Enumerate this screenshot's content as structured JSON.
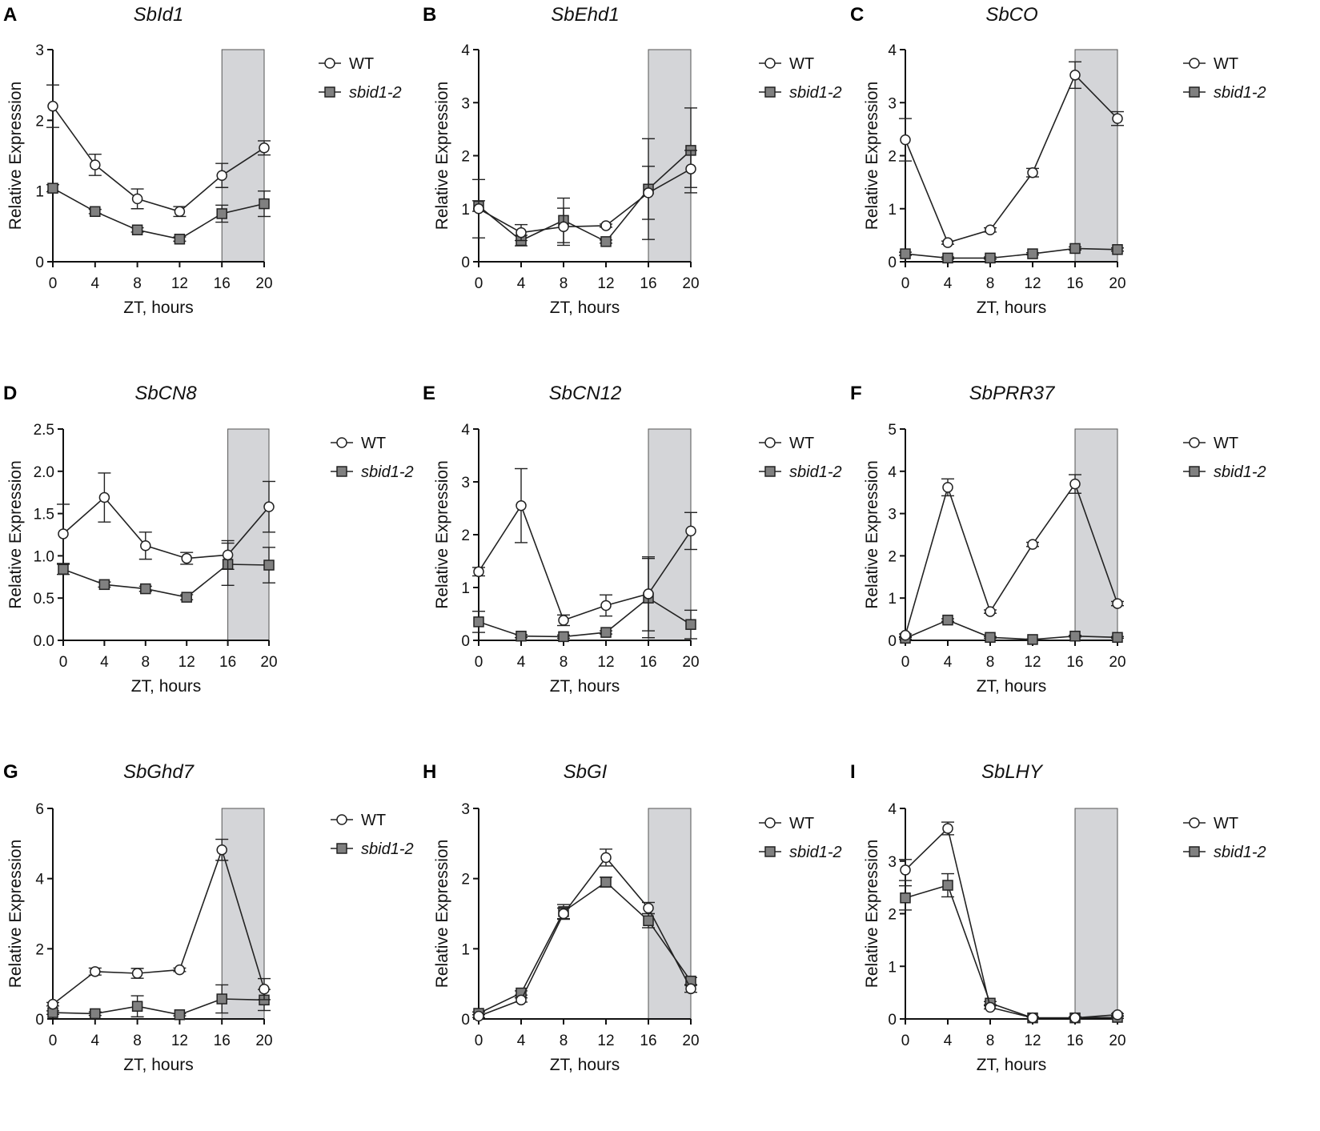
{
  "figure": {
    "legend_labels": [
      "WT",
      "sbid1-2"
    ],
    "colors": {
      "wt_fill": "#ffffff",
      "mutant_fill": "#808080",
      "dark_shade": "#d4d5d8",
      "line": "#222222"
    }
  },
  "chart_data": [
    {
      "letter": "A",
      "title": "SbId1",
      "type": "line",
      "xlabel": "ZT, hours",
      "ylabel": "Relative Expression",
      "x": [
        0,
        4,
        8,
        12,
        16,
        20
      ],
      "xlim": [
        0,
        20
      ],
      "ylim": [
        0,
        3
      ],
      "yticks": [
        0,
        1,
        2,
        3
      ],
      "ytick_labels": [
        "0",
        "1",
        "2",
        "3"
      ],
      "dark_period": [
        16,
        20
      ],
      "series": [
        {
          "name": "WT",
          "values": [
            2.2,
            1.37,
            0.89,
            0.71,
            1.22,
            1.61
          ],
          "errors": [
            0.3,
            0.15,
            0.14,
            0.07,
            0.17,
            0.1
          ]
        },
        {
          "name": "sbid1-2",
          "values": [
            1.04,
            0.71,
            0.45,
            0.32,
            0.68,
            0.82
          ],
          "errors": [
            0.05,
            0.03,
            0.03,
            0.03,
            0.12,
            0.18
          ]
        }
      ]
    },
    {
      "letter": "B",
      "title": "SbEhd1",
      "type": "line",
      "xlabel": "ZT, hours",
      "ylabel": "Relative Expression",
      "x": [
        0,
        4,
        8,
        12,
        16,
        20
      ],
      "xlim": [
        0,
        20
      ],
      "ylim": [
        0,
        4
      ],
      "yticks": [
        0,
        1,
        2,
        3,
        4
      ],
      "ytick_labels": [
        "0",
        "1",
        "2",
        "3",
        "4"
      ],
      "dark_period": [
        16,
        20
      ],
      "series": [
        {
          "name": "WT",
          "values": [
            1.0,
            0.55,
            0.66,
            0.68,
            1.3,
            1.75
          ],
          "errors": [
            0.55,
            0.15,
            0.35,
            0.03,
            0.5,
            0.35
          ]
        },
        {
          "name": "sbid1-2",
          "values": [
            1.05,
            0.4,
            0.78,
            0.38,
            1.37,
            2.1
          ],
          "errors": [
            0.1,
            0.1,
            0.42,
            0.03,
            0.95,
            0.8
          ]
        }
      ]
    },
    {
      "letter": "C",
      "title": "SbCO",
      "type": "line",
      "xlabel": "ZT, hours",
      "ylabel": "Relative Expression",
      "x": [
        0,
        4,
        8,
        12,
        16,
        20
      ],
      "xlim": [
        0,
        20
      ],
      "ylim": [
        0,
        4
      ],
      "yticks": [
        0,
        1,
        2,
        3,
        4
      ],
      "ytick_labels": [
        "0",
        "1",
        "2",
        "3",
        "4"
      ],
      "dark_period": [
        16,
        20
      ],
      "series": [
        {
          "name": "WT",
          "values": [
            2.3,
            0.36,
            0.6,
            1.68,
            3.52,
            2.7
          ],
          "errors": [
            0.4,
            0.03,
            0.04,
            0.08,
            0.25,
            0.13
          ]
        },
        {
          "name": "sbid1-2",
          "values": [
            0.15,
            0.07,
            0.07,
            0.15,
            0.25,
            0.23
          ],
          "errors": [
            0.03,
            0.02,
            0.02,
            0.02,
            0.03,
            0.03
          ]
        }
      ]
    },
    {
      "letter": "D",
      "title": "SbCN8",
      "type": "line",
      "xlabel": "ZT, hours",
      "ylabel": "Relative Expression",
      "x": [
        0,
        4,
        8,
        12,
        16,
        20
      ],
      "xlim": [
        0,
        20
      ],
      "ylim": [
        0,
        2.5
      ],
      "yticks": [
        0,
        0.5,
        1,
        1.5,
        2,
        2.5
      ],
      "ytick_labels": [
        "0.0",
        "0.5",
        "1.0",
        "1.5",
        "2.0",
        "2.5"
      ],
      "dark_period": [
        16,
        20
      ],
      "series": [
        {
          "name": "WT",
          "values": [
            1.26,
            1.69,
            1.12,
            0.97,
            1.01,
            1.58
          ],
          "errors": [
            0.35,
            0.29,
            0.16,
            0.07,
            0.17,
            0.3
          ]
        },
        {
          "name": "sbid1-2",
          "values": [
            0.84,
            0.66,
            0.61,
            0.51,
            0.9,
            0.89
          ],
          "errors": [
            0.06,
            0.03,
            0.03,
            0.03,
            0.25,
            0.21
          ]
        }
      ]
    },
    {
      "letter": "E",
      "title": "SbCN12",
      "type": "line",
      "xlabel": "ZT, hours",
      "ylabel": "Relative Expression",
      "x": [
        0,
        4,
        8,
        12,
        16,
        20
      ],
      "xlim": [
        0,
        20
      ],
      "ylim": [
        0,
        4
      ],
      "yticks": [
        0,
        1,
        2,
        3,
        4
      ],
      "ytick_labels": [
        "0",
        "1",
        "2",
        "3",
        "4"
      ],
      "dark_period": [
        16,
        20
      ],
      "series": [
        {
          "name": "WT",
          "values": [
            1.3,
            2.55,
            0.38,
            0.66,
            0.88,
            2.07
          ],
          "errors": [
            0.08,
            0.7,
            0.1,
            0.2,
            0.7,
            0.35
          ]
        },
        {
          "name": "sbid1-2",
          "values": [
            0.35,
            0.08,
            0.07,
            0.15,
            0.8,
            0.3
          ],
          "errors": [
            0.2,
            0.03,
            0.03,
            0.03,
            0.75,
            0.27
          ]
        }
      ]
    },
    {
      "letter": "F",
      "title": "SbPRR37",
      "type": "line",
      "xlabel": "ZT, hours",
      "ylabel": "Relative Expression",
      "x": [
        0,
        4,
        8,
        12,
        16,
        20
      ],
      "xlim": [
        0,
        20
      ],
      "ylim": [
        0,
        5
      ],
      "yticks": [
        0,
        1,
        2,
        3,
        4,
        5
      ],
      "ytick_labels": [
        "0",
        "1",
        "2",
        "3",
        "4",
        "5"
      ],
      "dark_period": [
        16,
        20
      ],
      "series": [
        {
          "name": "WT",
          "values": [
            0.12,
            3.62,
            0.68,
            2.27,
            3.7,
            0.87
          ],
          "errors": [
            0.03,
            0.2,
            0.04,
            0.05,
            0.22,
            0.05
          ]
        },
        {
          "name": "sbid1-2",
          "values": [
            0.05,
            0.48,
            0.07,
            0.02,
            0.1,
            0.07
          ],
          "errors": [
            0.02,
            0.03,
            0.02,
            0.01,
            0.02,
            0.02
          ]
        }
      ]
    },
    {
      "letter": "G",
      "title": "SbGhd7",
      "type": "line",
      "xlabel": "ZT, hours",
      "ylabel": "Relative Expression",
      "x": [
        0,
        4,
        8,
        12,
        16,
        20
      ],
      "xlim": [
        0,
        20
      ],
      "ylim": [
        0,
        6
      ],
      "yticks": [
        0,
        2,
        4,
        6
      ],
      "ytick_labels": [
        "0",
        "2",
        "4",
        "6"
      ],
      "dark_period": [
        16,
        20
      ],
      "series": [
        {
          "name": "WT",
          "values": [
            0.42,
            1.35,
            1.3,
            1.4,
            4.82,
            0.85
          ],
          "errors": [
            0.05,
            0.1,
            0.14,
            0.05,
            0.3,
            0.3
          ]
        },
        {
          "name": "sbid1-2",
          "values": [
            0.18,
            0.15,
            0.36,
            0.12,
            0.57,
            0.54
          ],
          "errors": [
            0.05,
            0.05,
            0.3,
            0.03,
            0.4,
            0.3
          ]
        }
      ]
    },
    {
      "letter": "H",
      "title": "SbGI",
      "type": "line",
      "xlabel": "ZT, hours",
      "ylabel": "Relative Expression",
      "x": [
        0,
        4,
        8,
        12,
        16,
        20
      ],
      "xlim": [
        0,
        20
      ],
      "ylim": [
        0,
        3
      ],
      "yticks": [
        0,
        1,
        2,
        3
      ],
      "ytick_labels": [
        "0",
        "1",
        "2",
        "3"
      ],
      "dark_period": [
        16,
        20
      ],
      "series": [
        {
          "name": "WT",
          "values": [
            0.04,
            0.27,
            1.5,
            2.3,
            1.58,
            0.43
          ],
          "errors": [
            0.02,
            0.03,
            0.08,
            0.12,
            0.08,
            0.05
          ]
        },
        {
          "name": "sbid1-2",
          "values": [
            0.08,
            0.37,
            1.53,
            1.95,
            1.4,
            0.54
          ],
          "errors": [
            0.02,
            0.03,
            0.1,
            0.07,
            0.1,
            0.05
          ]
        }
      ]
    },
    {
      "letter": "I",
      "title": "SbLHY",
      "type": "line",
      "xlabel": "ZT, hours",
      "ylabel": "Relative Expression",
      "x": [
        0,
        4,
        8,
        12,
        16,
        20
      ],
      "xlim": [
        0,
        20
      ],
      "ylim": [
        0,
        4
      ],
      "yticks": [
        0,
        1,
        2,
        3,
        4
      ],
      "ytick_labels": [
        "0",
        "1",
        "2",
        "3",
        "4"
      ],
      "dark_period": [
        16,
        20
      ],
      "series": [
        {
          "name": "WT",
          "values": [
            2.83,
            3.62,
            0.22,
            0.02,
            0.02,
            0.08
          ],
          "errors": [
            0.2,
            0.12,
            0.03,
            0.02,
            0.02,
            0.02
          ]
        },
        {
          "name": "sbid1-2",
          "values": [
            2.3,
            2.54,
            0.3,
            0.02,
            0.02,
            0.03
          ],
          "errors": [
            0.23,
            0.22,
            0.03,
            0.02,
            0.02,
            0.02
          ]
        }
      ]
    }
  ]
}
